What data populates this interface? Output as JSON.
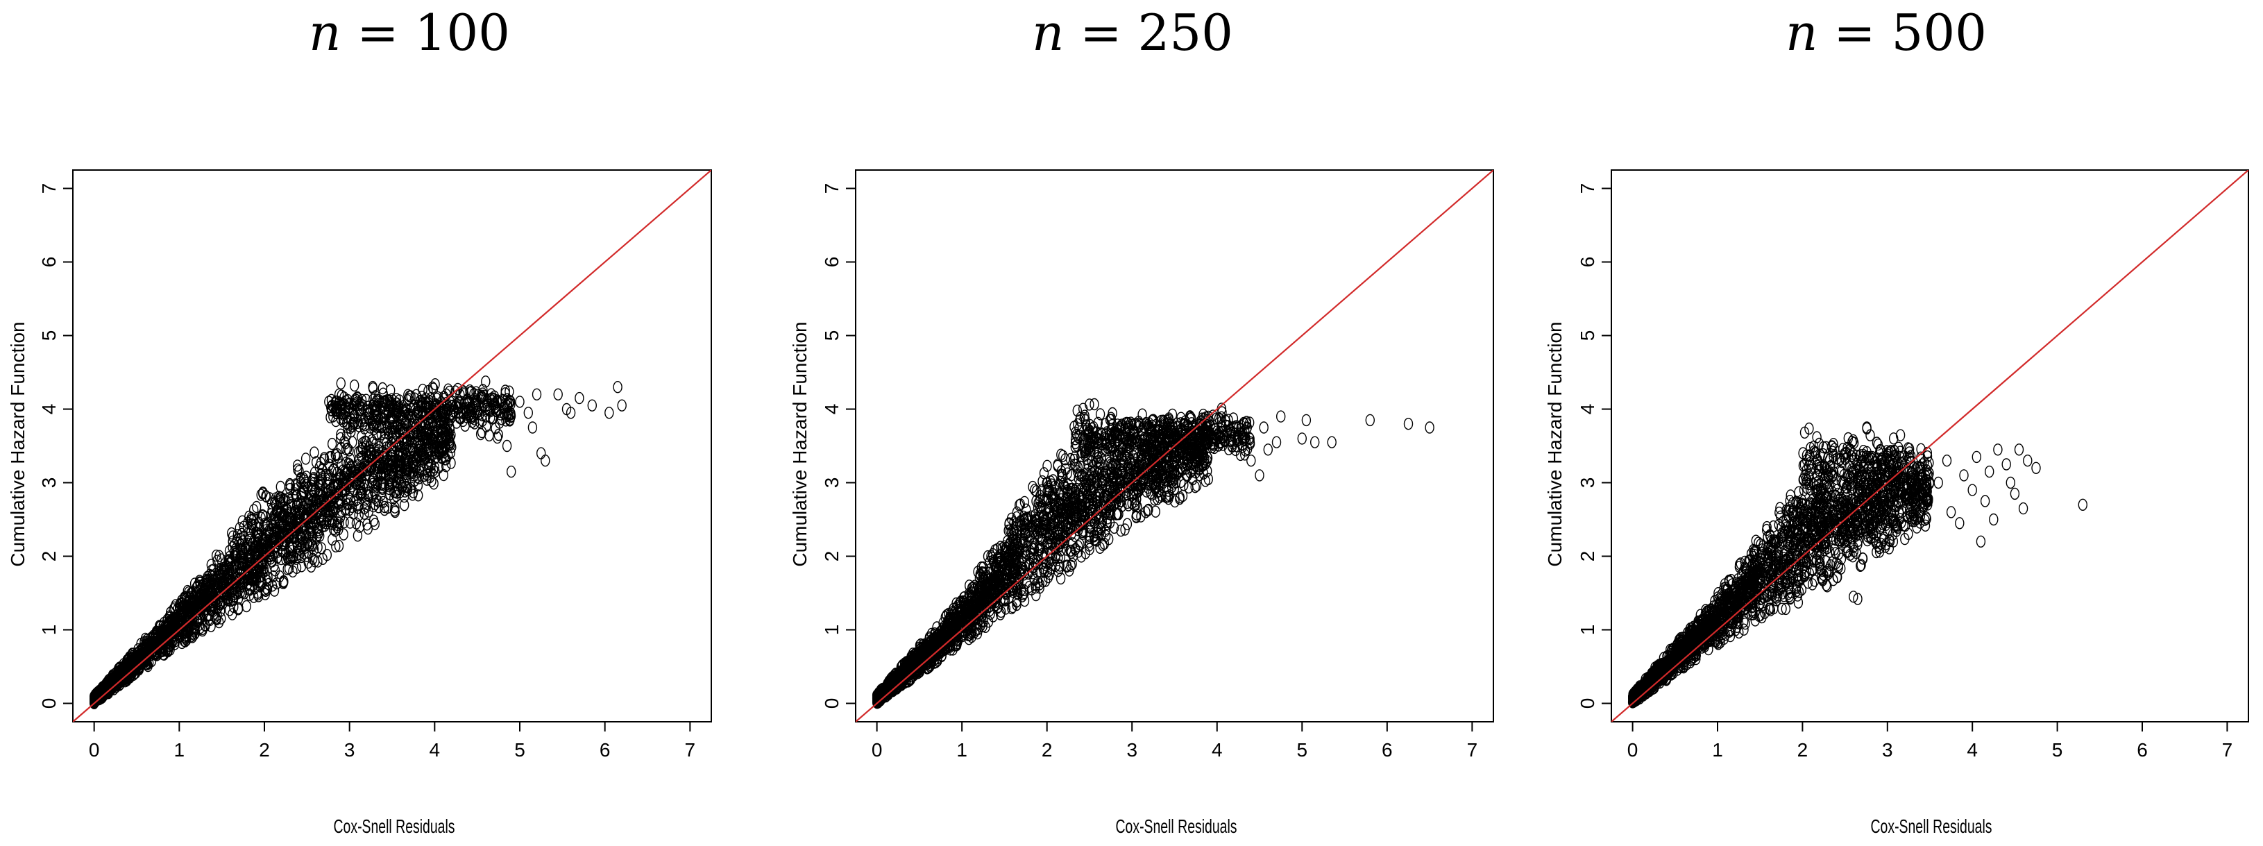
{
  "chart_data": [
    {
      "type": "scatter",
      "title_n": "n",
      "title_eq": " = ",
      "title_value": "100",
      "xlabel": "Cox-Snell Residuals",
      "ylabel": "Cumulative Hazard Function",
      "xlim": [
        -0.25,
        7.25
      ],
      "ylim": [
        -0.25,
        7.25
      ],
      "xticks": [
        "0",
        "1",
        "2",
        "3",
        "4",
        "5",
        "6",
        "7"
      ],
      "yticks": [
        "0",
        "1",
        "2",
        "3",
        "4",
        "5",
        "6",
        "7"
      ],
      "reference_line": {
        "slope": 1,
        "intercept": 0,
        "color": "#d22a2a"
      },
      "cloud": {
        "seed": 11,
        "count": 2600,
        "x_range": [
          0,
          4.2
        ],
        "band": [
          {
            "x": 0.0,
            "lo": 0.0,
            "hi": 0.1
          },
          {
            "x": 1.0,
            "lo": 0.8,
            "hi": 1.4
          },
          {
            "x": 2.0,
            "lo": 1.4,
            "hi": 2.9
          },
          {
            "x": 3.0,
            "lo": 2.2,
            "hi": 3.8
          },
          {
            "x": 4.2,
            "lo": 3.1,
            "hi": 4.2
          }
        ],
        "plateau": {
          "x_range": [
            2.75,
            4.9
          ],
          "y": 4.0,
          "spread": 0.13,
          "count": 420
        }
      },
      "outliers": [
        {
          "x": 4.6,
          "y": 4.0
        },
        {
          "x": 4.75,
          "y": 3.65
        },
        {
          "x": 4.85,
          "y": 3.5
        },
        {
          "x": 4.9,
          "y": 3.15
        },
        {
          "x": 5.0,
          "y": 4.1
        },
        {
          "x": 5.1,
          "y": 3.95
        },
        {
          "x": 5.15,
          "y": 3.75
        },
        {
          "x": 5.25,
          "y": 3.4
        },
        {
          "x": 5.3,
          "y": 3.3
        },
        {
          "x": 5.2,
          "y": 4.2
        },
        {
          "x": 5.45,
          "y": 4.2
        },
        {
          "x": 5.55,
          "y": 4.0
        },
        {
          "x": 5.6,
          "y": 3.95
        },
        {
          "x": 5.7,
          "y": 4.15
        },
        {
          "x": 5.85,
          "y": 4.05
        },
        {
          "x": 6.05,
          "y": 3.95
        },
        {
          "x": 6.15,
          "y": 4.3
        },
        {
          "x": 6.2,
          "y": 4.05
        }
      ]
    },
    {
      "type": "scatter",
      "title_n": "n",
      "title_eq": " = ",
      "title_value": "250",
      "xlabel": "Cox-Snell Residuals",
      "ylabel": "Cumulative Hazard Function",
      "xlim": [
        -0.25,
        7.25
      ],
      "ylim": [
        -0.25,
        7.25
      ],
      "xticks": [
        "0",
        "1",
        "2",
        "3",
        "4",
        "5",
        "6",
        "7"
      ],
      "yticks": [
        "0",
        "1",
        "2",
        "3",
        "4",
        "5",
        "6",
        "7"
      ],
      "reference_line": {
        "slope": 1,
        "intercept": 0,
        "color": "#d22a2a"
      },
      "cloud": {
        "seed": 23,
        "count": 2600,
        "x_range": [
          0,
          3.9
        ],
        "band": [
          {
            "x": 0.0,
            "lo": 0.0,
            "hi": 0.12
          },
          {
            "x": 1.0,
            "lo": 0.8,
            "hi": 1.45
          },
          {
            "x": 2.0,
            "lo": 1.55,
            "hi": 3.3
          },
          {
            "x": 3.0,
            "lo": 2.4,
            "hi": 3.85
          },
          {
            "x": 3.9,
            "lo": 3.0,
            "hi": 3.9
          }
        ],
        "plateau": {
          "x_range": [
            2.3,
            4.4
          ],
          "y": 3.65,
          "spread": 0.16,
          "count": 380
        }
      },
      "outliers": [
        {
          "x": 4.3,
          "y": 3.6
        },
        {
          "x": 4.4,
          "y": 3.3
        },
        {
          "x": 4.5,
          "y": 3.1
        },
        {
          "x": 4.55,
          "y": 3.75
        },
        {
          "x": 4.6,
          "y": 3.45
        },
        {
          "x": 4.7,
          "y": 3.55
        },
        {
          "x": 4.75,
          "y": 3.9
        },
        {
          "x": 5.0,
          "y": 3.6
        },
        {
          "x": 5.05,
          "y": 3.85
        },
        {
          "x": 5.15,
          "y": 3.55
        },
        {
          "x": 5.35,
          "y": 3.55
        },
        {
          "x": 5.8,
          "y": 3.85
        },
        {
          "x": 6.25,
          "y": 3.8
        },
        {
          "x": 6.5,
          "y": 3.75
        }
      ]
    },
    {
      "type": "scatter",
      "title_n": "n",
      "title_eq": " = ",
      "title_value": "500",
      "xlabel": "Cox-Snell Residuals",
      "ylabel": "Cumulative Hazard Function",
      "xlim": [
        -0.25,
        7.25
      ],
      "ylim": [
        -0.25,
        7.25
      ],
      "xticks": [
        "0",
        "1",
        "2",
        "3",
        "4",
        "5",
        "6",
        "7"
      ],
      "yticks": [
        "0",
        "1",
        "2",
        "3",
        "4",
        "5",
        "6",
        "7"
      ],
      "reference_line": {
        "slope": 1,
        "intercept": 0,
        "color": "#d22a2a"
      },
      "cloud": {
        "seed": 37,
        "count": 2400,
        "x_range": [
          0,
          3.5
        ],
        "band": [
          {
            "x": 0.0,
            "lo": 0.0,
            "hi": 0.12
          },
          {
            "x": 1.0,
            "lo": 0.8,
            "hi": 1.5
          },
          {
            "x": 2.0,
            "lo": 1.4,
            "hi": 3.1
          },
          {
            "x": 2.8,
            "lo": 1.9,
            "hi": 3.5
          },
          {
            "x": 3.5,
            "lo": 2.4,
            "hi": 3.45
          }
        ],
        "plateau": {
          "x_range": [
            2.0,
            3.2
          ],
          "y": 3.25,
          "spread": 0.2,
          "count": 180
        }
      },
      "outliers": [
        {
          "x": 2.6,
          "y": 1.45
        },
        {
          "x": 2.65,
          "y": 1.42
        },
        {
          "x": 3.6,
          "y": 3.0
        },
        {
          "x": 3.7,
          "y": 3.3
        },
        {
          "x": 3.75,
          "y": 2.6
        },
        {
          "x": 3.85,
          "y": 2.45
        },
        {
          "x": 3.9,
          "y": 3.1
        },
        {
          "x": 4.0,
          "y": 2.9
        },
        {
          "x": 4.05,
          "y": 3.35
        },
        {
          "x": 4.1,
          "y": 2.2
        },
        {
          "x": 4.15,
          "y": 2.75
        },
        {
          "x": 4.2,
          "y": 3.15
        },
        {
          "x": 4.25,
          "y": 2.5
        },
        {
          "x": 4.3,
          "y": 3.45
        },
        {
          "x": 4.4,
          "y": 3.25
        },
        {
          "x": 4.45,
          "y": 3.0
        },
        {
          "x": 4.5,
          "y": 2.85
        },
        {
          "x": 4.55,
          "y": 3.45
        },
        {
          "x": 4.6,
          "y": 2.65
        },
        {
          "x": 4.65,
          "y": 3.3
        },
        {
          "x": 4.75,
          "y": 3.2
        },
        {
          "x": 5.3,
          "y": 2.7
        }
      ]
    }
  ]
}
